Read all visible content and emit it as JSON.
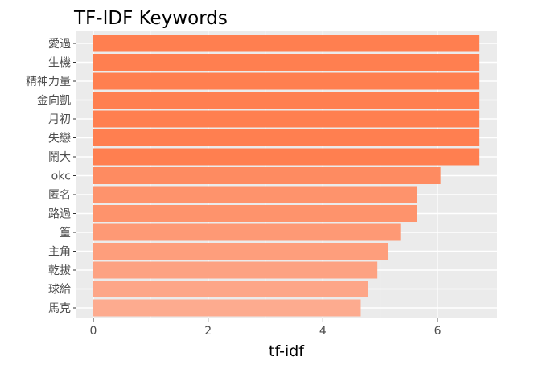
{
  "chart_data": {
    "type": "bar",
    "orientation": "horizontal",
    "title": "TF-IDF Keywords",
    "xlabel": "tf-idf",
    "ylabel": "",
    "xlim": [
      0,
      7.05
    ],
    "xticks": [
      0,
      2,
      4,
      6
    ],
    "grid": true,
    "categories": [
      "愛過",
      "生機",
      "精神力量",
      "金向凱",
      "月初",
      "失戀",
      "鬧大",
      "okc",
      "匿名",
      "路過",
      "篁",
      "主角",
      "乾拔",
      "球給",
      "馬克"
    ],
    "values": [
      6.73,
      6.73,
      6.73,
      6.73,
      6.73,
      6.73,
      6.73,
      6.05,
      5.64,
      5.64,
      5.35,
      5.13,
      4.95,
      4.79,
      4.66
    ],
    "colors": {
      "panel_background": "#ebebeb",
      "grid_major": "#ffffff",
      "bar_high": "#ff7f50",
      "bar_low": "#fdab8f"
    }
  }
}
